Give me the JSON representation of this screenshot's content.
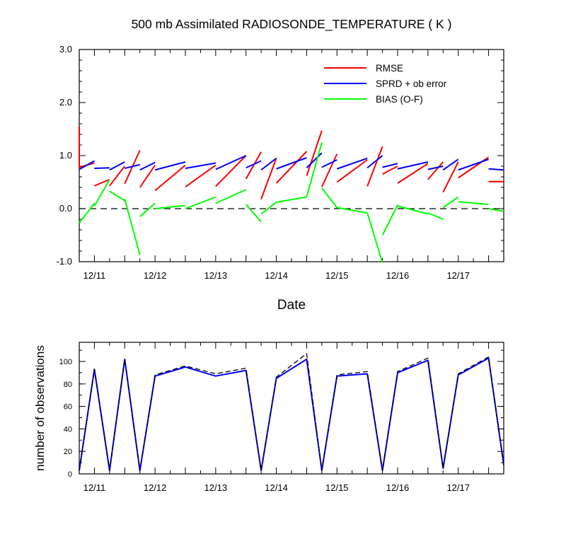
{
  "chart_data": [
    {
      "type": "line",
      "title": "500 mb Assimilated RADIOSONDE_TEMPERATURE ( K )",
      "xlabel": "Date",
      "ylabel": "",
      "xlim": [
        0,
        28
      ],
      "ylim": [
        -1.0,
        3.0
      ],
      "x_unit": "6-hourly cycles since first plotted cycle",
      "xtick_labels": [
        {
          "x": 1,
          "label": "12/11"
        },
        {
          "x": 5,
          "label": "12/12"
        },
        {
          "x": 9,
          "label": "12/13"
        },
        {
          "x": 13,
          "label": "12/14"
        },
        {
          "x": 17,
          "label": "12/15"
        },
        {
          "x": 21,
          "label": "12/16"
        },
        {
          "x": 25,
          "label": "12/17"
        }
      ],
      "yticks": [
        {
          "v": -1.0,
          "label": "-1.0"
        },
        {
          "v": 0.0,
          "label": "0.0"
        },
        {
          "v": 1.0,
          "label": "1.0"
        },
        {
          "v": 2.0,
          "label": "2.0"
        },
        {
          "v": 3.0,
          "label": "3.0"
        }
      ],
      "reference_line": {
        "y": 0.0,
        "style": "dashed",
        "color": "#000000"
      },
      "legend": {
        "placement": "top-right",
        "entries": [
          "RMSE",
          "SPRD + ob error",
          "BIAS (O-F)"
        ]
      },
      "series": [
        {
          "name": "RMSE",
          "color": "#ff0000",
          "segments": [
            [
              [
                0,
                1.55
              ],
              [
                0,
                0.78
              ]
            ],
            [
              [
                0,
                0.78
              ],
              [
                1,
                0.86
              ]
            ],
            [
              [
                1,
                0.43
              ],
              [
                2,
                0.55
              ]
            ],
            [
              [
                2,
                0.43
              ],
              [
                3,
                0.8
              ]
            ],
            [
              [
                3,
                0.47
              ],
              [
                4,
                1.1
              ]
            ],
            [
              [
                4,
                0.4
              ],
              [
                5,
                0.82
              ]
            ],
            [
              [
                5,
                0.34
              ],
              [
                7,
                0.82
              ]
            ],
            [
              [
                7,
                0.41
              ],
              [
                9,
                0.82
              ]
            ],
            [
              [
                9,
                0.42
              ],
              [
                11,
                1.0
              ]
            ],
            [
              [
                11,
                0.56
              ],
              [
                12,
                1.07
              ]
            ],
            [
              [
                12,
                0.18
              ],
              [
                13,
                0.95
              ]
            ],
            [
              [
                13,
                0.48
              ],
              [
                15,
                1.08
              ]
            ],
            [
              [
                15,
                0.62
              ],
              [
                16,
                1.47
              ]
            ],
            [
              [
                16,
                0.41
              ],
              [
                17,
                1.03
              ]
            ],
            [
              [
                17,
                0.5
              ],
              [
                19,
                0.92
              ]
            ],
            [
              [
                19,
                0.42
              ],
              [
                20,
                1.17
              ]
            ],
            [
              [
                20,
                0.65
              ],
              [
                21,
                0.8
              ]
            ],
            [
              [
                21,
                0.48
              ],
              [
                23,
                0.85
              ]
            ],
            [
              [
                23,
                0.55
              ],
              [
                24,
                0.88
              ]
            ],
            [
              [
                24,
                0.31
              ],
              [
                25,
                0.88
              ]
            ],
            [
              [
                25,
                0.58
              ],
              [
                27,
                0.97
              ]
            ],
            [
              [
                27,
                0.51
              ],
              [
                28,
                0.51
              ]
            ]
          ]
        },
        {
          "name": "SPRD + ob error",
          "color": "#0000ff",
          "segments": [
            [
              [
                0,
                0.74
              ],
              [
                1,
                0.9
              ]
            ],
            [
              [
                1,
                0.76
              ],
              [
                2,
                0.77
              ]
            ],
            [
              [
                2,
                0.73
              ],
              [
                3,
                0.88
              ]
            ],
            [
              [
                3,
                0.76
              ],
              [
                4,
                0.83
              ]
            ],
            [
              [
                4,
                0.73
              ],
              [
                5,
                0.87
              ]
            ],
            [
              [
                5,
                0.73
              ],
              [
                7,
                0.88
              ]
            ],
            [
              [
                7,
                0.76
              ],
              [
                9,
                0.86
              ]
            ],
            [
              [
                9,
                0.74
              ],
              [
                11,
                1.0
              ]
            ],
            [
              [
                11,
                0.77
              ],
              [
                12,
                0.9
              ]
            ],
            [
              [
                12,
                0.73
              ],
              [
                13,
                0.95
              ]
            ],
            [
              [
                13,
                0.75
              ],
              [
                15,
                0.96
              ]
            ],
            [
              [
                15,
                0.77
              ],
              [
                16,
                1.05
              ]
            ],
            [
              [
                16,
                0.78
              ],
              [
                17,
                0.92
              ]
            ],
            [
              [
                17,
                0.75
              ],
              [
                19,
                0.95
              ]
            ],
            [
              [
                19,
                0.77
              ],
              [
                20,
                1.0
              ]
            ],
            [
              [
                20,
                0.78
              ],
              [
                21,
                0.85
              ]
            ],
            [
              [
                21,
                0.75
              ],
              [
                23,
                0.88
              ]
            ],
            [
              [
                23,
                0.74
              ],
              [
                24,
                0.8
              ]
            ],
            [
              [
                24,
                0.73
              ],
              [
                25,
                0.93
              ]
            ],
            [
              [
                25,
                0.73
              ],
              [
                27,
                0.93
              ]
            ],
            [
              [
                27,
                0.75
              ],
              [
                28,
                0.73
              ]
            ]
          ]
        },
        {
          "name": "BIAS (O-F)",
          "color": "#00ff00",
          "segments": [
            [
              [
                0,
                -0.27
              ],
              [
                1,
                0.1
              ]
            ],
            [
              [
                1,
                0.05
              ],
              [
                2,
                0.55
              ]
            ],
            [
              [
                2,
                0.33
              ],
              [
                3,
                0.15
              ]
            ],
            [
              [
                3,
                0.18
              ],
              [
                4,
                -0.87
              ]
            ],
            [
              [
                4,
                -0.15
              ],
              [
                5,
                0.1
              ]
            ],
            [
              [
                5,
                0.0
              ],
              [
                7,
                0.06
              ]
            ],
            [
              [
                7,
                0.0
              ],
              [
                9,
                0.22
              ]
            ],
            [
              [
                9,
                0.1
              ],
              [
                11,
                0.36
              ]
            ],
            [
              [
                11,
                0.08
              ],
              [
                12,
                -0.25
              ]
            ],
            [
              [
                12,
                -0.1
              ],
              [
                13,
                0.12
              ]
            ],
            [
              [
                13,
                0.12
              ],
              [
                15,
                0.22
              ]
            ],
            [
              [
                15,
                0.22
              ],
              [
                16,
                1.25
              ]
            ],
            [
              [
                16,
                0.39
              ],
              [
                17,
                0.02
              ]
            ],
            [
              [
                17,
                0.02
              ],
              [
                19,
                -0.08
              ]
            ],
            [
              [
                19,
                -0.08
              ],
              [
                20,
                -1.02
              ]
            ],
            [
              [
                20,
                -0.5
              ],
              [
                21,
                0.07
              ]
            ],
            [
              [
                21,
                0.05
              ],
              [
                23,
                -0.1
              ]
            ],
            [
              [
                23,
                -0.08
              ],
              [
                24,
                -0.2
              ]
            ],
            [
              [
                24,
                0.02
              ],
              [
                25,
                0.22
              ]
            ],
            [
              [
                25,
                0.13
              ],
              [
                27,
                0.08
              ]
            ],
            [
              [
                27,
                0.0
              ],
              [
                28,
                -0.05
              ]
            ]
          ]
        }
      ]
    },
    {
      "type": "line",
      "title": "",
      "xlabel": "",
      "ylabel": "number of observations",
      "xlim": [
        0,
        28
      ],
      "ylim": [
        0,
        117
      ],
      "x_unit": "6-hourly cycles since first plotted cycle",
      "xtick_labels": [
        {
          "x": 1,
          "label": "12/11"
        },
        {
          "x": 5,
          "label": "12/12"
        },
        {
          "x": 9,
          "label": "12/13"
        },
        {
          "x": 13,
          "label": "12/14"
        },
        {
          "x": 17,
          "label": "12/15"
        },
        {
          "x": 21,
          "label": "12/16"
        },
        {
          "x": 25,
          "label": "12/17"
        }
      ],
      "yticks": [
        {
          "v": 0,
          "label": "0"
        },
        {
          "v": 20,
          "label": "20"
        },
        {
          "v": 40,
          "label": "40"
        },
        {
          "v": 60,
          "label": "60"
        },
        {
          "v": 80,
          "label": "80"
        },
        {
          "v": 100,
          "label": "100"
        }
      ],
      "series": [
        {
          "color": "#0000ff",
          "style": "solid",
          "x": [
            0,
            1,
            2,
            3,
            4,
            5,
            7,
            9,
            11,
            12,
            13,
            15,
            16,
            17,
            19,
            20,
            21,
            23,
            24,
            25,
            27,
            28
          ],
          "values": [
            3,
            93,
            3,
            102,
            3,
            87,
            95,
            87,
            92,
            3,
            85,
            102,
            3,
            87,
            89,
            3,
            90,
            101,
            5,
            88,
            103,
            8
          ]
        },
        {
          "color": "#000000",
          "style": "dashed",
          "x": [
            0,
            1,
            2,
            3,
            4,
            5,
            7,
            9,
            11,
            12,
            13,
            15,
            16,
            17,
            19,
            20,
            21,
            23,
            24,
            25,
            27,
            28
          ],
          "values": [
            3,
            93,
            3,
            102,
            3,
            88,
            96,
            89,
            94,
            3,
            86,
            107,
            3,
            88,
            91,
            3,
            91,
            103,
            5,
            89,
            104,
            8
          ]
        }
      ]
    }
  ]
}
